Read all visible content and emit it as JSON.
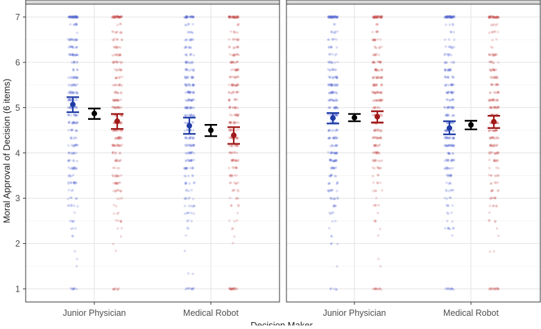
{
  "chart_data": {
    "type": "scatter",
    "ylabel": "Moral Approval of Decision (6 items)",
    "xlabel": "Decision Maker",
    "categories": [
      "Junior Physician",
      "Medical Robot"
    ],
    "y_ticks": [
      "1",
      "2",
      "3",
      "4",
      "5",
      "6",
      "7"
    ],
    "ylim": [
      0.83,
      7.0
    ],
    "grid": true,
    "legend": "none",
    "series_colors": {
      "blue": "#1f3ca6",
      "red": "#a01818",
      "overall": "#000000"
    },
    "panels": [
      {
        "groups": [
          {
            "category": "Junior Physician",
            "blue": {
              "mean": 5.07,
              "lower": 4.9,
              "upper": 5.23
            },
            "overall": {
              "mean": 4.87,
              "lower": 4.75,
              "upper": 4.98
            },
            "red": {
              "mean": 4.7,
              "lower": 4.53,
              "upper": 4.86
            }
          },
          {
            "category": "Medical Robot",
            "blue": {
              "mean": 4.6,
              "lower": 4.42,
              "upper": 4.78
            },
            "overall": {
              "mean": 4.5,
              "lower": 4.37,
              "upper": 4.62
            },
            "red": {
              "mean": 4.39,
              "lower": 4.2,
              "upper": 4.57
            }
          }
        ]
      },
      {
        "groups": [
          {
            "category": "Junior Physician",
            "blue": {
              "mean": 4.77,
              "lower": 4.65,
              "upper": 4.88
            },
            "overall": {
              "mean": 4.78,
              "lower": 4.7,
              "upper": 4.86
            },
            "red": {
              "mean": 4.8,
              "lower": 4.67,
              "upper": 4.92
            }
          },
          {
            "category": "Medical Robot",
            "blue": {
              "mean": 4.55,
              "lower": 4.41,
              "upper": 4.7
            },
            "overall": {
              "mean": 4.62,
              "lower": 4.52,
              "upper": 4.71
            },
            "red": {
              "mean": 4.69,
              "lower": 4.55,
              "upper": 4.82
            }
          }
        ]
      }
    ]
  }
}
